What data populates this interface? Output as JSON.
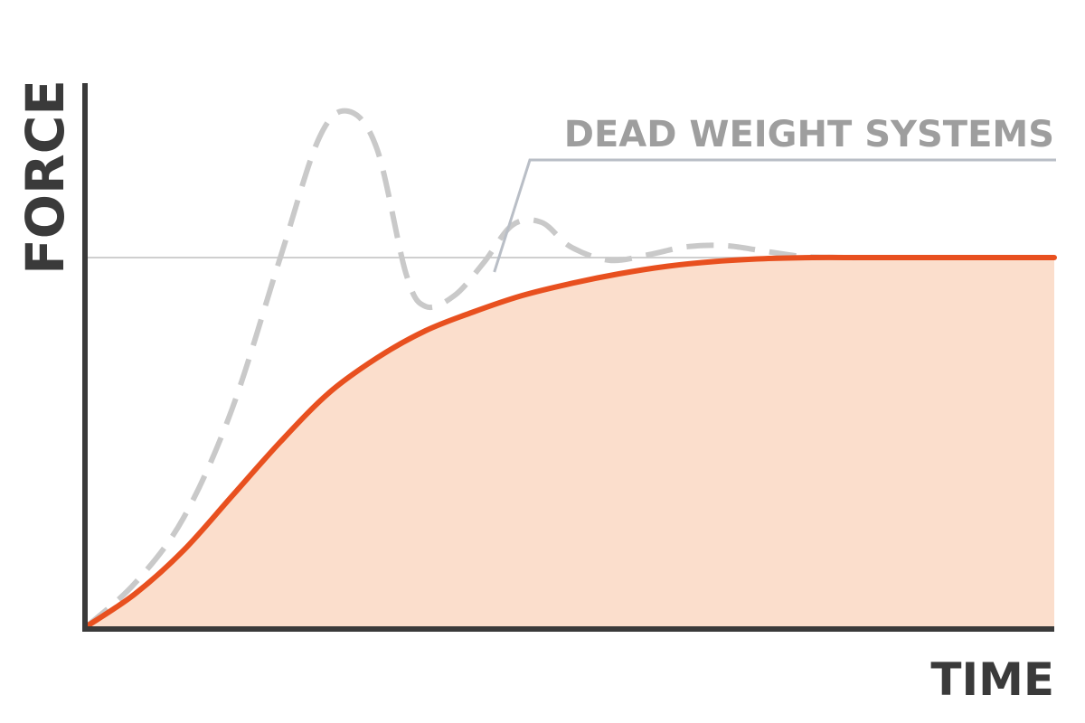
{
  "chart_data": {
    "type": "line",
    "title": "",
    "xlabel": "TIME",
    "ylabel": "FORCE",
    "xlim": [
      0,
      100
    ],
    "ylim": [
      0,
      100
    ],
    "grid": false,
    "reference_line": {
      "y": 68
    },
    "annotation": {
      "text": "DEAD WEIGHT SYSTEMS",
      "target_series": 1
    },
    "series": [
      {
        "style": "solid-filled",
        "color": "#e8501f",
        "fill_color": "#fbdecc",
        "x": [
          0,
          5,
          10,
          15,
          20,
          25,
          30,
          35,
          40,
          45,
          50,
          55,
          60,
          65,
          70,
          75,
          80,
          85,
          90,
          95,
          100
        ],
        "y": [
          0,
          6,
          14,
          24,
          34,
          43,
          49.5,
          54.5,
          58,
          61,
          63.2,
          65,
          66.4,
          67.3,
          67.8,
          68,
          68,
          68,
          68,
          68,
          68
        ]
      },
      {
        "style": "dashed",
        "color": "#c9c9c9",
        "x": [
          0,
          5,
          10,
          15,
          20,
          24,
          27,
          30,
          33,
          35,
          38,
          41,
          44,
          47,
          50,
          54,
          58,
          62,
          66,
          70,
          74,
          78,
          80
        ],
        "y": [
          0,
          8,
          20,
          40,
          68,
          90,
          95,
          88,
          65,
          59,
          61,
          67,
          74,
          74.5,
          70,
          67.5,
          68.5,
          70,
          70.2,
          69.2,
          68.2,
          68,
          68
        ]
      }
    ]
  }
}
